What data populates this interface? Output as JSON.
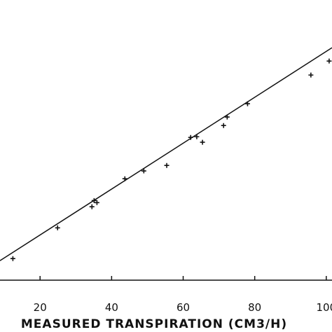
{
  "chart_data": {
    "type": "scatter",
    "x_label": "MEASURED TRANSPIRATION (CM3/H)",
    "x": [
      12.4,
      24.9,
      34.5,
      35.1,
      35.9,
      43.7,
      49.0,
      55.4,
      62.1,
      63.8,
      65.4,
      71.3,
      72.3,
      78.0,
      95.7,
      100.8
    ],
    "values": [
      9.7,
      23.1,
      32.3,
      35.0,
      34.1,
      44.5,
      47.9,
      50.3,
      62.5,
      62.8,
      60.4,
      67.7,
      71.4,
      77.2,
      89.7,
      95.8
    ],
    "fit_line": {
      "x": [
        8.8,
        101.6
      ],
      "y": [
        8.8,
        101.6
      ]
    },
    "color": "#111111",
    "xlim": [
      8.8,
      101.6
    ],
    "ylim": [
      0.3,
      122.4
    ],
    "xticks": [
      20,
      40,
      60,
      80,
      100
    ]
  }
}
